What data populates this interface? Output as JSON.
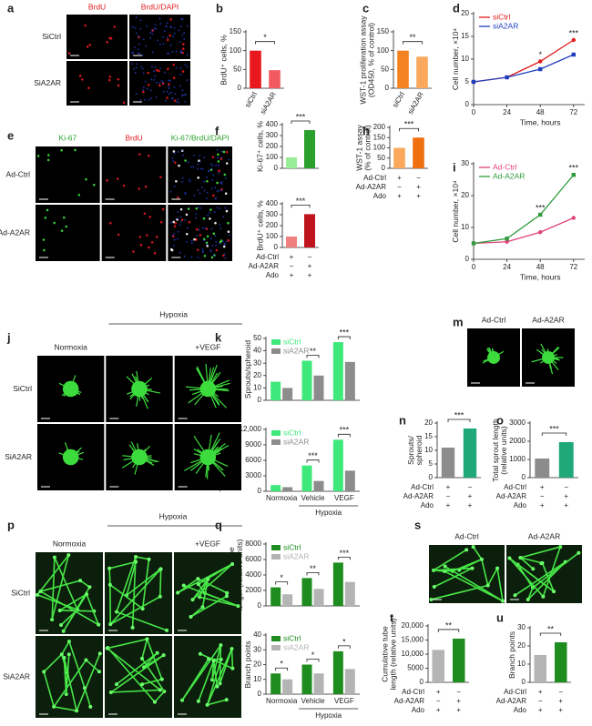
{
  "chart_data": [
    {
      "letter": "b",
      "type": "bar",
      "ylabel": "BrdU⁺ cells, %",
      "categories": [
        "siCtrl",
        "siA2AR"
      ],
      "values": [
        100,
        48
      ],
      "colors": [
        "#e8191e",
        "#f25a5f"
      ],
      "ylim": [
        0,
        150
      ],
      "yticks": [
        0,
        50,
        100,
        150
      ],
      "significance": "*"
    },
    {
      "letter": "c",
      "type": "bar",
      "ylabel": [
        "WST-1 proliferation assay",
        "(OD450, % of control)"
      ],
      "categories": [
        "siCtrl",
        "siA2AR"
      ],
      "values": [
        100,
        84
      ],
      "colors": [
        "#f58220",
        "#f9a85c"
      ],
      "ylim": [
        0,
        150
      ],
      "yticks": [
        0,
        50,
        100,
        150
      ],
      "significance": "**"
    },
    {
      "letter": "d",
      "type": "line",
      "ylabel": "Cell number, ×10⁴",
      "xlabel": "Time, hours",
      "x": [
        0,
        24,
        48,
        72
      ],
      "xlim": [
        0,
        80
      ],
      "xticks": [
        0,
        24,
        48,
        72
      ],
      "ylim": [
        0,
        20
      ],
      "yticks": [
        0,
        5,
        10,
        15,
        20
      ],
      "series": [
        {
          "name": "siCtrl",
          "color": "#e31a1c",
          "values": [
            5,
            6,
            9.5,
            14.2
          ]
        },
        {
          "name": "siA2AR",
          "color": "#1f3fbf",
          "values": [
            5,
            6,
            7.8,
            11
          ]
        }
      ],
      "annotations": [
        {
          "x": 48,
          "text": "*"
        },
        {
          "x": 72,
          "text": "***"
        }
      ]
    },
    {
      "letter": "f",
      "type": "bar",
      "ylabel": "Ki-67⁺ cells, %",
      "values": [
        100,
        350
      ],
      "colors": [
        "#98ee98",
        "#2ca02c"
      ],
      "ylim": [
        0,
        400
      ],
      "yticks": [
        0,
        100,
        200,
        300,
        400
      ],
      "significance": "***"
    },
    {
      "letter": "g",
      "type": "bar",
      "ylabel": "BrdU⁺ cells, %",
      "values": [
        100,
        305
      ],
      "colors": [
        "#f08080",
        "#c0141c"
      ],
      "ylim": [
        0,
        400
      ],
      "yticks": [
        0,
        100,
        200,
        300,
        400
      ],
      "significance": "***",
      "conditions": [
        {
          "label": "Ad-Ctrl",
          "signs": [
            "+",
            "−"
          ]
        },
        {
          "label": "Ad-A2AR",
          "signs": [
            "−",
            "+"
          ]
        },
        {
          "label": "Ado",
          "signs": [
            "+",
            "+"
          ]
        }
      ]
    },
    {
      "letter": "h",
      "type": "bar",
      "ylabel": [
        "WST-1 assay",
        "(% of control)"
      ],
      "values": [
        100,
        150
      ],
      "colors": [
        "#f9a85c",
        "#f07010"
      ],
      "ylim": [
        0,
        200
      ],
      "yticks": [
        0,
        50,
        100,
        150,
        200
      ],
      "significance": "***",
      "conditions": [
        {
          "label": "Ad-Ctrl",
          "signs": [
            "+",
            "−"
          ]
        },
        {
          "label": "Ad-A2AR",
          "signs": [
            "−",
            "+"
          ]
        },
        {
          "label": "Ado",
          "signs": [
            "+",
            "+"
          ]
        }
      ]
    },
    {
      "letter": "i",
      "type": "line",
      "ylabel": "Cell number, ×10⁴",
      "xlabel": "Time, hours",
      "x": [
        0,
        24,
        48,
        72
      ],
      "xlim": [
        0,
        80
      ],
      "xticks": [
        0,
        24,
        48,
        72
      ],
      "ylim": [
        0,
        30
      ],
      "yticks": [
        0,
        10,
        20,
        30
      ],
      "series": [
        {
          "name": "Ad-Ctrl",
          "color": "#e0407a",
          "values": [
            5,
            5.5,
            8.5,
            13
          ]
        },
        {
          "name": "Ad-A2AR",
          "color": "#2e9a3a",
          "values": [
            5,
            6.5,
            14,
            26.5
          ]
        }
      ],
      "annotations": [
        {
          "x": 48,
          "text": "***"
        },
        {
          "x": 72,
          "text": "***"
        }
      ]
    },
    {
      "letter": "k",
      "type": "grouped-bar",
      "ylabel": "Sprouts/spheroid",
      "ylim": [
        0,
        50
      ],
      "yticks": [
        0,
        10,
        20,
        30,
        40,
        50
      ],
      "series": [
        {
          "name": "siCtrl",
          "color": "#3ee87a",
          "values": [
            15,
            32,
            47
          ]
        },
        {
          "name": "siA2AR",
          "color": "#8c8c8c",
          "values": [
            10,
            20,
            31
          ]
        }
      ],
      "significance": [
        null,
        "**",
        "***"
      ]
    },
    {
      "letter": "l",
      "type": "grouped-bar",
      "ylabel": [
        "Total sprout length",
        "(relative units)"
      ],
      "categories": [
        "Normoxia",
        "Vehicle",
        "VEGF"
      ],
      "group_label": "Hypoxia",
      "ylim": [
        0,
        12000
      ],
      "yticks": [
        0,
        {
          "value": 3000,
          "label": "3000"
        },
        {
          "value": 6000,
          "label": "6000"
        },
        {
          "value": 9000,
          "label": "9000"
        },
        {
          "value": 12000,
          "label": "12,000"
        }
      ],
      "series": [
        {
          "name": "siCtrl",
          "color": "#3ee87a",
          "values": [
            1200,
            5000,
            10000
          ]
        },
        {
          "name": "siA2AR",
          "color": "#8c8c8c",
          "values": [
            800,
            2000,
            4000
          ]
        }
      ],
      "significance": [
        null,
        "***",
        "***"
      ]
    },
    {
      "letter": "n",
      "type": "bar",
      "ylabel": [
        "Sprouts/",
        "spheroid"
      ],
      "values": [
        11,
        18
      ],
      "colors": [
        "#8c8c8c",
        "#1fa878"
      ],
      "ylim": [
        0,
        20
      ],
      "yticks": [
        0,
        5,
        10,
        15,
        20
      ],
      "significance": "***",
      "conditions": [
        {
          "label": "Ad-Ctrl",
          "signs": [
            "+",
            "−"
          ]
        },
        {
          "label": "Ad-A2AR",
          "signs": [
            "−",
            "+"
          ]
        },
        {
          "label": "Ado",
          "signs": [
            "+",
            "+"
          ]
        }
      ]
    },
    {
      "letter": "o",
      "type": "bar",
      "ylabel": [
        "Total sprout length",
        "(relative units)"
      ],
      "values": [
        1050,
        1950
      ],
      "colors": [
        "#8c8c8c",
        "#1fa878"
      ],
      "ylim": [
        0,
        3000
      ],
      "yticks": [
        0,
        1000,
        2000,
        3000
      ],
      "significance": "***",
      "conditions": [
        {
          "label": "Ad-Ctrl",
          "signs": [
            "+",
            "−"
          ]
        },
        {
          "label": "Ad-A2AR",
          "signs": [
            "−",
            "+"
          ]
        },
        {
          "label": "Ado",
          "signs": [
            "+",
            "+"
          ]
        }
      ]
    },
    {
      "letter": "q",
      "type": "grouped-bar",
      "ylabel": [
        "Cumulative tube",
        "length (relative units)"
      ],
      "ylim": [
        0,
        8000
      ],
      "yticks": [
        0,
        2000,
        4000,
        6000,
        8000
      ],
      "series": [
        {
          "name": "siCtrl",
          "color": "#1e8c1e",
          "values": [
            2400,
            3600,
            5600
          ]
        },
        {
          "name": "siA2AR",
          "color": "#b4b4b4",
          "values": [
            1500,
            2200,
            3100
          ]
        }
      ],
      "significance": [
        "*",
        "**",
        "***"
      ]
    },
    {
      "letter": "r",
      "type": "grouped-bar",
      "ylabel": "Branch points",
      "categories": [
        "Normoxia",
        "Vehicle",
        "VEGF"
      ],
      "group_label": "Hypoxia",
      "ylim": [
        0,
        40
      ],
      "yticks": [
        0,
        10,
        20,
        30,
        40
      ],
      "series": [
        {
          "name": "siCtrl",
          "color": "#1e8c1e",
          "values": [
            14,
            20,
            29
          ]
        },
        {
          "name": "siA2AR",
          "color": "#b4b4b4",
          "values": [
            10,
            14,
            17
          ]
        }
      ],
      "significance": [
        "*",
        "*",
        "*"
      ]
    },
    {
      "letter": "t",
      "type": "bar",
      "ylabel": [
        "Cumulative tube",
        "length (relative units)"
      ],
      "values": [
        11500,
        15500
      ],
      "colors": [
        "#b4b4b4",
        "#1e8c1e"
      ],
      "ylim": [
        0,
        20000
      ],
      "yticks": [
        0,
        {
          "value": 5000,
          "label": "5000"
        },
        {
          "value": 10000,
          "label": "10,000"
        },
        {
          "value": 15000,
          "label": "15,000"
        },
        {
          "value": 20000,
          "label": "20,000"
        }
      ],
      "significance": "**",
      "conditions": [
        {
          "label": "Ad-Ctrl",
          "signs": [
            "+",
            "−"
          ]
        },
        {
          "label": "Ad-A2AR",
          "signs": [
            "−",
            "+"
          ]
        },
        {
          "label": "Ado",
          "signs": [
            "+",
            "+"
          ]
        }
      ]
    },
    {
      "letter": "u",
      "type": "bar",
      "ylabel": "Branch points",
      "values": [
        15,
        22
      ],
      "colors": [
        "#b4b4b4",
        "#1e8c1e"
      ],
      "ylim": [
        0,
        30
      ],
      "yticks": [
        0,
        10,
        20,
        30
      ],
      "significance": "**",
      "conditions": [
        {
          "label": "Ad-Ctrl",
          "signs": [
            "+",
            "−"
          ]
        },
        {
          "label": "Ad-A2AR",
          "signs": [
            "−",
            "+"
          ]
        },
        {
          "label": "Ado",
          "signs": [
            "+",
            "+"
          ]
        }
      ]
    }
  ],
  "image_panels": [
    {
      "letter": "a",
      "columns": [
        {
          "text": "BrdU",
          "color": "#e31a1c"
        },
        {
          "text": "BrdU/DAPI",
          "color": "#e31a1c"
        }
      ],
      "rows": [
        "SiCtrl",
        "SiA2AR"
      ]
    },
    {
      "letter": "e",
      "columns": [
        {
          "text": "Ki-67",
          "color": "#2ca02c"
        },
        {
          "text": "BrdU",
          "color": "#e31a1c"
        },
        {
          "text": "Ki-67/BrdU/DAPI",
          "color": "#2ca02c"
        }
      ],
      "rows": [
        "Ad-Ctrl",
        "Ad-A2AR"
      ]
    },
    {
      "letter": "j",
      "columns": [
        "Normoxia",
        null,
        "+VEGF"
      ],
      "group": "Hypoxia",
      "rows": [
        "SiCtrl",
        "SiA2AR"
      ]
    },
    {
      "letter": "m",
      "columns": [
        "Ad-Ctrl",
        "Ad-A2AR"
      ],
      "rows": []
    },
    {
      "letter": "p",
      "columns": [
        "Normoxia",
        null,
        "+VEGF"
      ],
      "group": "Hypoxia",
      "rows": [
        "SiCtrl",
        "SiA2AR"
      ]
    },
    {
      "letter": "s",
      "columns": [
        "Ad-Ctrl",
        "Ad-A2AR"
      ],
      "rows": []
    }
  ]
}
